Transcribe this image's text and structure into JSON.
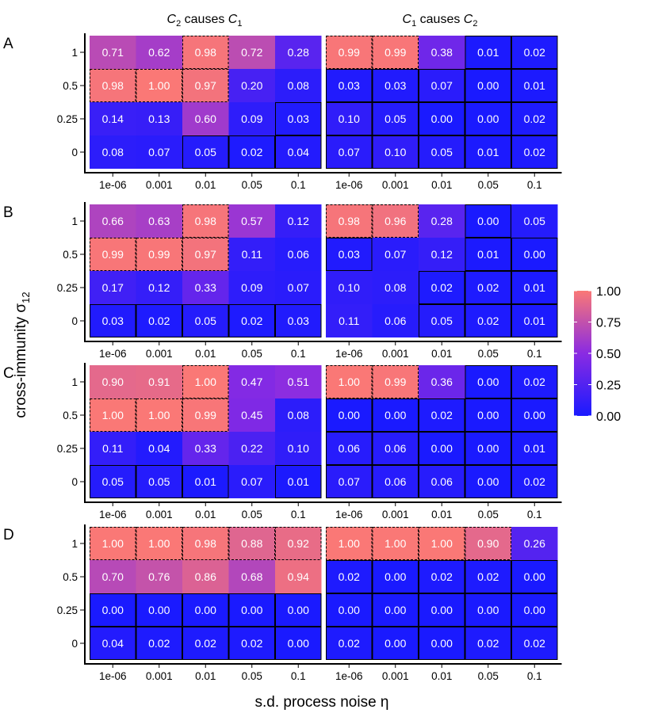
{
  "chart_data": {
    "type": "heatmap",
    "x_title": "s.d. process noise η",
    "y_title": "cross-immunity σ",
    "y_title_subscript": "12",
    "x_ticks": [
      "1e-06",
      "0.001",
      "0.01",
      "0.05",
      "0.1"
    ],
    "y_ticks": [
      "1",
      "0.5",
      "0.25",
      "0"
    ],
    "columns": [
      {
        "title_prefix": "C",
        "title_sub1": "2",
        "title_mid": " causes ",
        "title_var2": "C",
        "title_sub2": "1"
      },
      {
        "title_prefix": "C",
        "title_sub1": "1",
        "title_mid": " causes ",
        "title_var2": "C",
        "title_sub2": "2"
      }
    ],
    "legend": {
      "ticks": [
        "1.00",
        "0.75",
        "0.50",
        "0.25",
        "0.00"
      ],
      "range": [
        0,
        1
      ],
      "low_color": "#1a1aff",
      "mid_color": "#8a2be2",
      "high_color": "#fa7876"
    },
    "panels": [
      {
        "letter": "A",
        "facets": [
          {
            "values": [
              [
                0.71,
                0.62,
                0.98,
                0.72,
                0.28
              ],
              [
                0.98,
                1.0,
                0.97,
                0.2,
                0.08
              ],
              [
                0.14,
                0.13,
                0.6,
                0.09,
                0.03
              ],
              [
                0.08,
                0.07,
                0.05,
                0.02,
                0.04
              ]
            ],
            "labels": [
              [
                "0.71",
                "0.62",
                "0.98",
                "0.72",
                "0.28"
              ],
              [
                "0.98",
                "1.00",
                "0.97",
                "0.20",
                "0.08"
              ],
              [
                "0.14",
                "0.13",
                "0.60",
                "0.09",
                "0.03"
              ],
              [
                "0.08",
                "0.07",
                "0.05",
                "0.02",
                "0.04"
              ]
            ],
            "outline": [
              [
                "none",
                "none",
                "dashed",
                "none",
                "none"
              ],
              [
                "dashed",
                "dashed",
                "dashed",
                "none",
                "none"
              ],
              [
                "none",
                "none",
                "none",
                "none",
                "solid"
              ],
              [
                "none",
                "none",
                "solid",
                "solid",
                "solid"
              ]
            ]
          },
          {
            "values": [
              [
                0.99,
                0.99,
                0.38,
                0.01,
                0.02
              ],
              [
                0.03,
                0.03,
                0.07,
                0.0,
                0.01
              ],
              [
                0.1,
                0.05,
                0.0,
                0.0,
                0.02
              ],
              [
                0.07,
                0.1,
                0.05,
                0.01,
                0.02
              ]
            ],
            "labels": [
              [
                "0.99",
                "0.99",
                "0.38",
                "0.01",
                "0.02"
              ],
              [
                "0.03",
                "0.03",
                "0.07",
                "0.00",
                "0.01"
              ],
              [
                "0.10",
                "0.05",
                "0.00",
                "0.00",
                "0.02"
              ],
              [
                "0.07",
                "0.10",
                "0.05",
                "0.01",
                "0.02"
              ]
            ],
            "outline": [
              [
                "dashed",
                "dashed",
                "none",
                "solid",
                "solid"
              ],
              [
                "solid",
                "solid",
                "solid",
                "solid",
                "solid"
              ],
              [
                "solid",
                "solid",
                "solid",
                "solid",
                "solid"
              ],
              [
                "solid",
                "solid",
                "solid",
                "solid",
                "solid"
              ]
            ]
          }
        ]
      },
      {
        "letter": "B",
        "facets": [
          {
            "values": [
              [
                0.66,
                0.63,
                0.98,
                0.57,
                0.12
              ],
              [
                0.99,
                0.99,
                0.97,
                0.11,
                0.06
              ],
              [
                0.17,
                0.12,
                0.33,
                0.09,
                0.07
              ],
              [
                0.03,
                0.02,
                0.05,
                0.02,
                0.03
              ]
            ],
            "labels": [
              [
                "0.66",
                "0.63",
                "0.98",
                "0.57",
                "0.12"
              ],
              [
                "0.99",
                "0.99",
                "0.97",
                "0.11",
                "0.06"
              ],
              [
                "0.17",
                "0.12",
                "0.33",
                "0.09",
                "0.07"
              ],
              [
                "0.03",
                "0.02",
                "0.05",
                "0.02",
                "0.03"
              ]
            ],
            "outline": [
              [
                "none",
                "none",
                "dashed",
                "none",
                "none"
              ],
              [
                "dashed",
                "dashed",
                "dashed",
                "none",
                "none"
              ],
              [
                "none",
                "none",
                "none",
                "none",
                "none"
              ],
              [
                "solid",
                "solid",
                "solid",
                "solid",
                "solid"
              ]
            ]
          },
          {
            "values": [
              [
                0.98,
                0.96,
                0.28,
                0.0,
                0.05
              ],
              [
                0.03,
                0.07,
                0.12,
                0.01,
                0.0
              ],
              [
                0.1,
                0.08,
                0.02,
                0.02,
                0.01
              ],
              [
                0.11,
                0.06,
                0.05,
                0.02,
                0.01
              ]
            ],
            "labels": [
              [
                "0.98",
                "0.96",
                "0.28",
                "0.00",
                "0.05"
              ],
              [
                "0.03",
                "0.07",
                "0.12",
                "0.01",
                "0.00"
              ],
              [
                "0.10",
                "0.08",
                "0.02",
                "0.02",
                "0.01"
              ],
              [
                "0.11",
                "0.06",
                "0.05",
                "0.02",
                "0.01"
              ]
            ],
            "outline": [
              [
                "dashed",
                "dashed",
                "none",
                "solid",
                "none"
              ],
              [
                "solid",
                "none",
                "none",
                "solid",
                "solid"
              ],
              [
                "none",
                "none",
                "solid",
                "solid",
                "solid"
              ],
              [
                "none",
                "none",
                "solid",
                "solid",
                "solid"
              ]
            ]
          }
        ]
      },
      {
        "letter": "C",
        "facets": [
          {
            "values": [
              [
                0.9,
                0.91,
                1.0,
                0.47,
                0.51
              ],
              [
                1.0,
                1.0,
                0.99,
                0.45,
                0.08
              ],
              [
                0.11,
                0.04,
                0.33,
                0.22,
                0.1
              ],
              [
                0.05,
                0.05,
                0.01,
                0.07,
                0.01
              ]
            ],
            "labels": [
              [
                "0.90",
                "0.91",
                "1.00",
                "0.47",
                "0.51"
              ],
              [
                "1.00",
                "1.00",
                "0.99",
                "0.45",
                "0.08"
              ],
              [
                "0.11",
                "0.04",
                "0.33",
                "0.22",
                "0.10"
              ],
              [
                "0.05",
                "0.05",
                "0.01",
                "0.07",
                "0.01"
              ]
            ],
            "outline": [
              [
                "none",
                "none",
                "dashed",
                "none",
                "none"
              ],
              [
                "dashed",
                "dashed",
                "dashed",
                "none",
                "none"
              ],
              [
                "none",
                "none",
                "none",
                "none",
                "none"
              ],
              [
                "solid",
                "solid",
                "solid",
                "none",
                "solid"
              ]
            ]
          },
          {
            "values": [
              [
                1.0,
                0.99,
                0.36,
                0.0,
                0.02
              ],
              [
                0.0,
                0.0,
                0.02,
                0.0,
                0.0
              ],
              [
                0.06,
                0.06,
                0.0,
                0.0,
                0.01
              ],
              [
                0.07,
                0.06,
                0.06,
                0.0,
                0.02
              ]
            ],
            "labels": [
              [
                "1.00",
                "0.99",
                "0.36",
                "0.00",
                "0.02"
              ],
              [
                "0.00",
                "0.00",
                "0.02",
                "0.00",
                "0.00"
              ],
              [
                "0.06",
                "0.06",
                "0.00",
                "0.00",
                "0.01"
              ],
              [
                "0.07",
                "0.06",
                "0.06",
                "0.00",
                "0.02"
              ]
            ],
            "outline": [
              [
                "dashed",
                "dashed",
                "none",
                "solid",
                "solid"
              ],
              [
                "solid",
                "solid",
                "solid",
                "solid",
                "solid"
              ],
              [
                "solid",
                "solid",
                "solid",
                "solid",
                "solid"
              ],
              [
                "solid",
                "solid",
                "solid",
                "solid",
                "solid"
              ]
            ]
          }
        ]
      },
      {
        "letter": "D",
        "facets": [
          {
            "values": [
              [
                1.0,
                1.0,
                0.98,
                0.88,
                0.92
              ],
              [
                0.7,
                0.76,
                0.86,
                0.68,
                0.94
              ],
              [
                0.0,
                0.0,
                0.0,
                0.0,
                0.0
              ],
              [
                0.04,
                0.02,
                0.02,
                0.02,
                0.0
              ]
            ],
            "labels": [
              [
                "1.00",
                "1.00",
                "0.98",
                "0.88",
                "0.92"
              ],
              [
                "0.70",
                "0.76",
                "0.86",
                "0.68",
                "0.94"
              ],
              [
                "0.00",
                "0.00",
                "0.00",
                "0.00",
                "0.00"
              ],
              [
                "0.04",
                "0.02",
                "0.02",
                "0.02",
                "0.00"
              ]
            ],
            "outline": [
              [
                "dashed",
                "dashed",
                "dashed",
                "dashed",
                "dashed"
              ],
              [
                "none",
                "none",
                "none",
                "none",
                "none"
              ],
              [
                "solid",
                "solid",
                "solid",
                "solid",
                "solid"
              ],
              [
                "solid",
                "solid",
                "solid",
                "solid",
                "solid"
              ]
            ]
          },
          {
            "values": [
              [
                1.0,
                1.0,
                1.0,
                0.9,
                0.26
              ],
              [
                0.02,
                0.0,
                0.02,
                0.02,
                0.0
              ],
              [
                0.0,
                0.0,
                0.0,
                0.0,
                0.0
              ],
              [
                0.02,
                0.0,
                0.0,
                0.02,
                0.02
              ]
            ],
            "labels": [
              [
                "1.00",
                "1.00",
                "1.00",
                "0.90",
                "0.26"
              ],
              [
                "0.02",
                "0.00",
                "0.02",
                "0.02",
                "0.00"
              ],
              [
                "0.00",
                "0.00",
                "0.00",
                "0.00",
                "0.00"
              ],
              [
                "0.02",
                "0.00",
                "0.00",
                "0.02",
                "0.02"
              ]
            ],
            "outline": [
              [
                "dashed",
                "dashed",
                "dashed",
                "dashed",
                "none"
              ],
              [
                "solid",
                "solid",
                "solid",
                "solid",
                "solid"
              ],
              [
                "solid",
                "solid",
                "solid",
                "solid",
                "solid"
              ],
              [
                "solid",
                "solid",
                "solid",
                "solid",
                "solid"
              ]
            ]
          }
        ]
      }
    ]
  }
}
